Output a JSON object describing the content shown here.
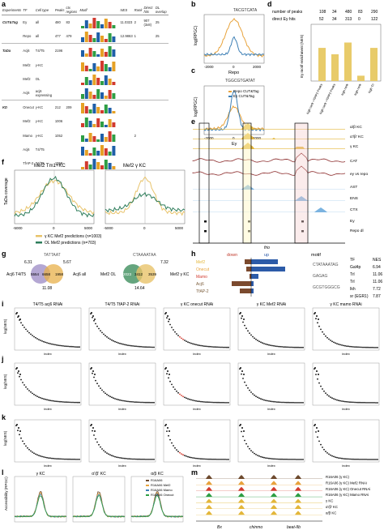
{
  "panels": {
    "a": {
      "label": "a",
      "headers": {
        "experiments": "Experiments",
        "tf": "TF",
        "cell_type": "Cell type",
        "peaks": "Peaks",
        "ctx_regions": "ctx regions",
        "motif": "Motif",
        "nes": "NES",
        "rank": "Rank",
        "direct_hits": "Direct hits",
        "dl_overlap": "DL overlap"
      },
      "groups": [
        {
          "name": "CUT&Tag",
          "rows": [
            {
              "tf": "Ey",
              "cell": "all",
              "peaks": "480",
              "ctx": "83",
              "nes": "11.0323",
              "rank": "2",
              "direct": "907 (3x8)",
              "dl": "25"
            },
            {
              "tf": "Repo",
              "cell": "all",
              "peaks": "477",
              "ctx": "479",
              "nes": "12.9863",
              "rank": "1",
              "direct": "",
              "dl": "25"
            }
          ]
        },
        {
          "name": "TaDa",
          "rows": [
            {
              "tf": "Acj6",
              "cell": "T4/T5",
              "peaks": "2196",
              "ctx": "",
              "nes": "",
              "rank": "",
              "direct": "",
              "dl": ""
            },
            {
              "tf": "Mef2",
              "cell": "γ-KC",
              "peaks": "",
              "ctx": "",
              "nes": "",
              "rank": "",
              "direct": "",
              "dl": ""
            },
            {
              "tf": "Mef2",
              "cell": "OL",
              "peaks": "",
              "ctx": "",
              "nes": "",
              "rank": "",
              "direct": "",
              "dl": ""
            },
            {
              "tf": "Acj6",
              "cell": "acj6 expressing",
              "peaks": "",
              "ctx": "",
              "nes": "",
              "rank": "",
              "direct": "",
              "dl": ""
            }
          ]
        },
        {
          "name": "KD",
          "rows": [
            {
              "tf": "Onecut",
              "cell": "γ-KC",
              "peaks": "212",
              "ctx": "209",
              "nes": "",
              "rank": "",
              "direct": "",
              "dl": ""
            },
            {
              "tf": "Mef2",
              "cell": "γ-KC",
              "peaks": "1006",
              "ctx": "",
              "nes": "",
              "rank": "",
              "direct": "",
              "dl": ""
            },
            {
              "tf": "Mamo",
              "cell": "γ-KC",
              "peaks": "1052",
              "ctx": "",
              "nes": "",
              "rank": "2",
              "direct": "",
              "dl": ""
            },
            {
              "tf": "Acj6",
              "cell": "T4/T5",
              "peaks": "",
              "ctx": "",
              "nes": "",
              "rank": "",
              "direct": "",
              "dl": ""
            },
            {
              "tf": "TfAP-2",
              "cell": "T4/T5",
              "peaks": "1958",
              "ctx": "",
              "nes": "",
              "rank": "",
              "direct": "",
              "dl": ""
            }
          ]
        }
      ]
    },
    "b": {
      "label": "b",
      "ylabel": "log(RPGC)",
      "xlabel": "Repo",
      "xticks": [
        "-2000",
        "0",
        "2000"
      ]
    },
    "c": {
      "label": "c",
      "ylabel": "log(RPGC)",
      "xlabel": "Ey",
      "xticks": [
        "-2000",
        "0",
        "2000"
      ],
      "legend": [
        "Repo CUT&Tag",
        "Ey CUT&Tag"
      ],
      "colors": {
        "repo": "#E8A33C",
        "ey": "#3D7FB5"
      }
    },
    "d": {
      "label": "d",
      "row1_label": "number of peaks",
      "row1_values": [
        "108",
        "34",
        "480",
        "83",
        "290"
      ],
      "row2_label": "direct Ey hits",
      "row2_values": [
        "52",
        "34",
        "313",
        "0",
        "122"
      ],
      "ylabel": "Ey motif enrichment (NES)",
      "categories": [
        "high rank +TfAP2 Peaks",
        "high rank +TfAP2 Peaks",
        "high rank",
        "high rank",
        "high Tri"
      ],
      "bar_color": "#E8CB6A"
    },
    "e": {
      "label": "e",
      "tracks": [
        "α/β KC",
        "α'/β' KC",
        "γ KC",
        "CAT",
        "ey vs repo",
        "AST",
        "ENS",
        "CTX",
        "Ey",
        "Repo dl"
      ],
      "gene": "frio"
    },
    "f": {
      "label": "f",
      "left_title": "Mef2 Tm1+KC",
      "right_title": "Mef2 γ KC",
      "ylabel": "TaDa coverage",
      "xticks": [
        "-5000",
        "0",
        "5000"
      ],
      "legend": [
        "γ KC Mef2 predictions (n=1003)",
        "OL Mef2 predictions (n=703)"
      ]
    },
    "g": {
      "label": "g",
      "venn1": {
        "left": "Acj6 T4/T5",
        "right": "Acj6 all",
        "a": "5554",
        "ab": "6658",
        "b": "1958",
        "top_left": "6.31",
        "top_right": "5.67",
        "bottom": "11.08"
      },
      "venn2": {
        "left": "Mef2 OL",
        "right": "Mef2 γ KC",
        "a": "2023",
        "ab": "3412",
        "b": "3539",
        "top_right": "7.32",
        "bottom": "14.64"
      }
    },
    "h": {
      "label": "h",
      "down": "down",
      "up": "up",
      "motif": "motif",
      "tfs": [
        "Mef2",
        "Onecut",
        "Mamo",
        "Acj6",
        "TfAP-2"
      ],
      "table": [
        {
          "tf": "TF",
          "nes": "NES"
        },
        {
          "tf": "Gal4p",
          "nes": "6.94"
        },
        {
          "tf": "Trl",
          "nes": "11.06"
        },
        {
          "tf": "Trl",
          "nes": "11.06"
        },
        {
          "tf": "Ikh",
          "nes": "7.72"
        },
        {
          "tf": "sr (EGR1)",
          "nes": "7.87"
        }
      ]
    },
    "i": {
      "label": "i",
      "titles": [
        "T4/T5 acj6 RNAi",
        "T4/T5 TfAP-2 RNAi",
        "γ KC onecut RNAi",
        "γ KC Mef2 RNAi",
        "γ KC mamo RNAi"
      ],
      "ylabel": "log(NES)",
      "xlabel": "index"
    },
    "j": {
      "label": "j",
      "ylabel": "log(NES)",
      "xlabel": "index"
    },
    "k": {
      "label": "k",
      "ylabel": "log(NES)",
      "xlabel": "index"
    },
    "l": {
      "label": "l",
      "titles": [
        "γ KC",
        "α'/β' KC",
        "α/β KC"
      ],
      "ylabel": "Accessibility (RPGC)",
      "legend": [
        "R16A06",
        "R16A06 Mef2",
        "R16A06 Mamo",
        "R16A06 Onecut"
      ]
    },
    "m": {
      "label": "m",
      "tracks": [
        "R16A06 (γ KC)",
        "R16A06 (γ KC) Mef2 RNAi",
        "R16A06 (γ KC) Onecut RNAi",
        "R16A06 (γ KC) Mamo RNAi",
        "γ KC",
        "α'/β' KC",
        "α/β KC"
      ],
      "genes": [
        "Bx",
        "chinmo",
        "beat-IIb"
      ]
    }
  }
}
